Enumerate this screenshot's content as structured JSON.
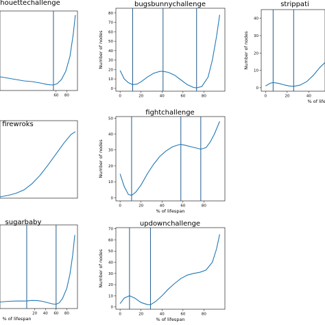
{
  "chart_data": [
    {
      "type": "line",
      "title": "houettechallenge",
      "xlabel": "",
      "ylabel": "",
      "xlim": [
        -45,
        100
      ],
      "ylim": [
        -3,
        55
      ],
      "x_ticks": [
        60,
        80
      ],
      "y_ticks": [],
      "vlines": [
        55
      ],
      "series": [
        {
          "color": "#1f77b4",
          "x": [
            -45,
            -30,
            -15,
            0,
            15,
            30,
            45,
            55,
            62,
            70,
            78,
            86,
            92,
            96
          ],
          "y": [
            7,
            6,
            5,
            4,
            3.5,
            2.5,
            1.3,
            1,
            2,
            5,
            11,
            22,
            38,
            52
          ]
        }
      ]
    },
    {
      "type": "line",
      "title": "bugsbunnychallenge",
      "xlabel": "",
      "ylabel": "Number of nodes",
      "xlim": [
        -4,
        100
      ],
      "ylim": [
        -3,
        85
      ],
      "x_ticks": [
        0,
        20,
        40,
        60,
        80
      ],
      "y_ticks": [
        0,
        10,
        20,
        30,
        40,
        50,
        60,
        70,
        80
      ],
      "vlines": [
        12,
        41,
        73
      ],
      "series": [
        {
          "color": "#1f77b4",
          "x": [
            0,
            4,
            8,
            12,
            16,
            20,
            26,
            32,
            38,
            41,
            46,
            52,
            58,
            64,
            70,
            73,
            78,
            84,
            88,
            92,
            95
          ],
          "y": [
            19,
            10,
            6,
            4,
            4.5,
            7,
            12,
            16,
            18,
            18,
            17,
            14,
            9,
            4,
            1,
            0.5,
            2,
            12,
            30,
            55,
            78
          ]
        }
      ]
    },
    {
      "type": "line",
      "title": "strippati",
      "xlabel": "% of lifespa",
      "ylabel": "Number of nodes",
      "xlim": [
        -4,
        55
      ],
      "ylim": [
        -2,
        45
      ],
      "x_ticks": [
        0,
        20,
        40
      ],
      "y_ticks": [
        0,
        10,
        20,
        30,
        40
      ],
      "vlines": [
        7,
        26
      ],
      "series": [
        {
          "color": "#1f77b4",
          "x": [
            0,
            4,
            7,
            12,
            18,
            22,
            26,
            32,
            38,
            44,
            50,
            55
          ],
          "y": [
            1,
            2.5,
            3,
            2.5,
            1.5,
            1,
            0.8,
            1.5,
            3.5,
            7,
            11.5,
            14.5
          ]
        }
      ]
    },
    {
      "type": "line",
      "title": "firewroks",
      "xlabel": "",
      "ylabel": "",
      "xlim": [
        -45,
        100
      ],
      "ylim": [
        0,
        56
      ],
      "x_ticks": [],
      "y_ticks": [],
      "vlines": [],
      "series": [
        {
          "color": "#1f77b4",
          "x": [
            -45,
            -30,
            -15,
            0,
            15,
            30,
            45,
            60,
            75,
            88,
            96
          ],
          "y": [
            1,
            2,
            3.5,
            6,
            10.5,
            16.5,
            24,
            32,
            40,
            46,
            48
          ]
        }
      ]
    },
    {
      "type": "line",
      "title": "fightchallenge",
      "xlabel": "% of lifespan",
      "ylabel": "Number of nodes",
      "xlim": [
        -4,
        100
      ],
      "ylim": [
        -2,
        51
      ],
      "x_ticks": [
        0,
        20,
        40,
        60,
        80
      ],
      "y_ticks": [
        0,
        10,
        20,
        30,
        40,
        50
      ],
      "vlines": [
        11,
        58,
        77
      ],
      "series": [
        {
          "color": "#1f77b4",
          "x": [
            0,
            4,
            8,
            11,
            15,
            20,
            26,
            32,
            38,
            44,
            50,
            56,
            58,
            62,
            68,
            74,
            77,
            82,
            86,
            90,
            95
          ],
          "y": [
            15,
            7,
            2,
            1.5,
            3.5,
            8,
            15,
            21,
            26,
            29.5,
            32,
            33.3,
            33.5,
            33,
            32,
            31,
            30.5,
            31.5,
            35,
            40,
            48
          ]
        }
      ]
    },
    {
      "type": "line",
      "title": "sugarbaby",
      "xlabel": "% of lifespan",
      "ylabel": "",
      "xlim": [
        -45,
        100
      ],
      "ylim": [
        -3,
        55
      ],
      "x_ticks": [
        20,
        40,
        60,
        80
      ],
      "y_ticks": [],
      "vlines": [
        5,
        60
      ],
      "series": [
        {
          "color": "#1f77b4",
          "x": [
            -45,
            -30,
            -15,
            0,
            5,
            15,
            25,
            35,
            45,
            55,
            60,
            66,
            72,
            80,
            86,
            91,
            95
          ],
          "y": [
            1.5,
            2,
            2.2,
            2.2,
            2.3,
            2.6,
            2.5,
            2,
            1,
            0.1,
            0,
            1,
            4,
            11,
            21,
            34,
            48
          ]
        }
      ]
    },
    {
      "type": "line",
      "title": "updownchallenge",
      "xlabel": "% of lifespan",
      "ylabel": "Number of nodes",
      "xlim": [
        -4,
        100
      ],
      "ylim": [
        -2,
        71
      ],
      "x_ticks": [
        0,
        20,
        40,
        60,
        80
      ],
      "y_ticks": [
        0,
        10,
        20,
        30,
        40,
        50,
        60,
        70
      ],
      "vlines": [
        9,
        29
      ],
      "series": [
        {
          "color": "#1f77b4",
          "x": [
            0,
            4,
            9,
            14,
            20,
            26,
            29,
            34,
            40,
            46,
            52,
            58,
            64,
            70,
            76,
            82,
            88,
            92,
            95
          ],
          "y": [
            3,
            8,
            10,
            8,
            4,
            2.2,
            2,
            5,
            10,
            16,
            21,
            25.5,
            28.5,
            30,
            31,
            33,
            40,
            52,
            65
          ]
        }
      ]
    }
  ]
}
